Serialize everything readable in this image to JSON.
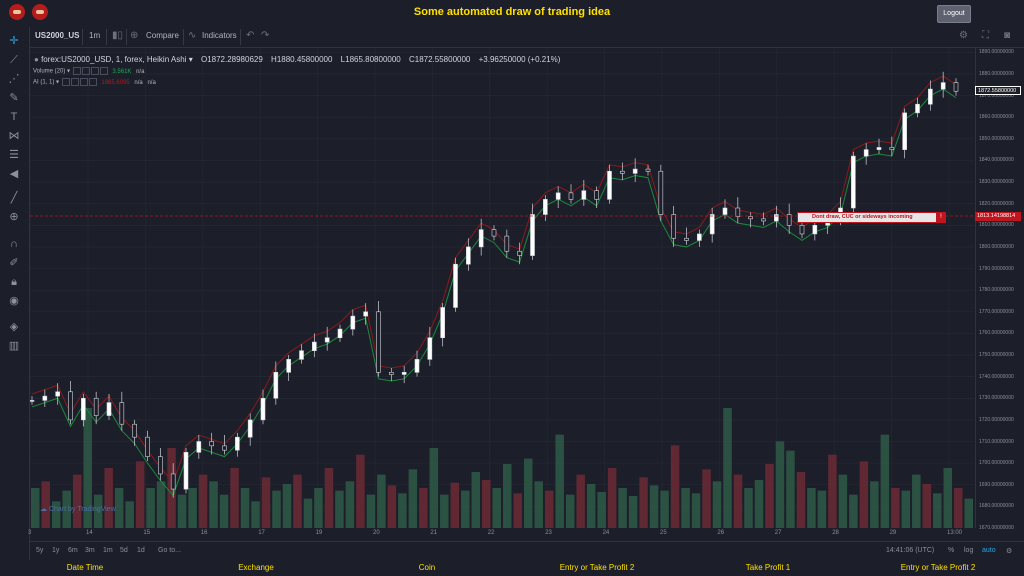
{
  "header": {
    "title": "Some automated draw of trading idea",
    "logout_label": "Logout"
  },
  "toolbar": {
    "symbol": "US2000_US",
    "interval": "1m",
    "compare_label": "Compare",
    "indicators_label": "Indicators"
  },
  "legend": {
    "series_title": "forex:US2000_USD, 1, forex, Heikin Ashi",
    "open": "O1872.28980629",
    "high": "H1880.45800000",
    "low": "L1865.80800000",
    "close": "C1872.55800000",
    "change": "+3.96250000 (+0.21%)",
    "volume_label": "Volume (20)",
    "volume_value": "3.561K",
    "volume_na": "n/a",
    "ai_label": "AI (1, 1)",
    "ai_value": "1865.6095",
    "ai_na1": "n/a",
    "ai_na2": "n/a"
  },
  "watermark": "Chart by TradingView",
  "price_axis": {
    "labels": [
      "1890.00000000",
      "1880.00000000",
      "1870.00000000",
      "1860.00000000",
      "1850.00000000",
      "1840.00000000",
      "1830.00000000",
      "1820.00000000",
      "1810.00000000",
      "1800.00000000",
      "1790.00000000",
      "1780.00000000",
      "1770.00000000",
      "1760.00000000",
      "1750.00000000",
      "1740.00000000",
      "1730.00000000",
      "1720.00000000",
      "1710.00000000",
      "1700.00000000",
      "1690.00000000",
      "1680.00000000",
      "1670.00000000"
    ],
    "current_price": "1872.55800000",
    "alert_price": "1813.14198814"
  },
  "alert": {
    "text": "Dont draw, CUC or sideways incoming",
    "badge": "!"
  },
  "time_axis": {
    "labels": [
      "3",
      "14",
      "15",
      "16",
      "17",
      "19",
      "20",
      "21",
      "22",
      "23",
      "24",
      "25",
      "26",
      "27",
      "28",
      "29",
      "13:00"
    ]
  },
  "bottombar": {
    "ranges": [
      "5y",
      "1y",
      "6m",
      "3m",
      "1m",
      "5d",
      "1d"
    ],
    "goto_label": "Go to...",
    "clock": "14:41:06 (UTC)",
    "percent": "%",
    "log": "log",
    "auto": "auto"
  },
  "footer": {
    "labels": [
      "Date Time",
      "Exchange",
      "Coin",
      "Entry or Take Profit 2",
      "Take Profit 1",
      "Entry or Take Profit 2"
    ]
  },
  "colors": {
    "accent_yellow": "#ffe100",
    "bull_green": "#1b8a3a",
    "bear_red": "#8b1a1a",
    "alert_red": "#c0141e"
  },
  "chart_data": {
    "type": "line",
    "y_range": [
      1670,
      1892
    ],
    "series": [
      {
        "values": [
          1729,
          1731,
          1733,
          1720,
          1730,
          1722,
          1728,
          1718,
          1712,
          1703,
          1695,
          1688,
          1705,
          1710,
          1708,
          1706,
          1712,
          1720,
          1730,
          1742,
          1748,
          1752,
          1756,
          1758,
          1762,
          1768,
          1770,
          1742,
          1741,
          1742,
          1748,
          1758,
          1772,
          1792,
          1800,
          1808,
          1805,
          1798,
          1796,
          1815,
          1822,
          1825,
          1822,
          1826,
          1822,
          1835,
          1834,
          1836,
          1835,
          1815,
          1804,
          1803,
          1806,
          1815,
          1818,
          1814,
          1813,
          1812,
          1815,
          1810,
          1806,
          1810,
          1812,
          1818,
          1842,
          1845,
          1846,
          1845,
          1862,
          1866,
          1873,
          1876,
          1872
        ]
      }
    ],
    "volume": [
      30,
      35,
      20,
      28,
      40,
      90,
      25,
      45,
      30,
      20,
      50,
      30,
      35,
      60,
      25,
      30,
      40,
      35,
      25,
      45,
      30,
      20,
      38,
      28,
      33,
      40,
      22,
      30,
      45,
      28,
      35,
      55,
      25,
      40,
      32,
      26,
      44,
      30,
      60,
      25,
      34,
      28,
      42,
      36,
      30,
      48,
      26,
      52,
      35,
      28,
      70,
      25,
      40,
      33,
      27,
      45,
      30,
      24,
      38,
      32,
      28,
      62,
      30,
      26,
      44,
      35,
      90,
      40,
      30,
      36,
      48,
      65,
      58,
      42,
      30,
      28,
      55,
      40,
      25,
      50,
      35,
      70,
      30,
      28,
      40,
      33,
      26,
      45,
      30,
      22
    ]
  }
}
